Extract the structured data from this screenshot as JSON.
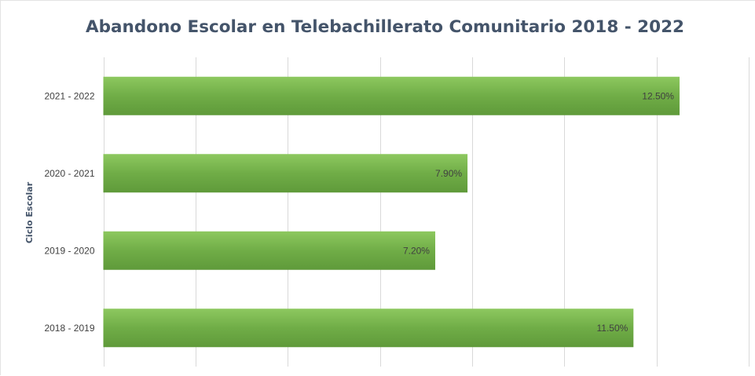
{
  "chart_data": {
    "type": "bar",
    "orientation": "horizontal",
    "title": "Abandono Escolar en Telebachillerato Comunitario 2018 - 2022",
    "ylabel": "Ciclo Escolar",
    "xlabel": "",
    "categories": [
      "2021 - 2022",
      "2020 - 2021",
      "2019 - 2020",
      "2018 - 2019"
    ],
    "values": [
      12.5,
      7.9,
      7.2,
      11.5
    ],
    "value_labels": [
      "12.50%",
      "7.90%",
      "7.20%",
      "11.50%"
    ],
    "xlim": [
      0,
      14
    ],
    "x_gridline_step": 2,
    "grid": true,
    "legend": "none",
    "bar_color": "#70ad47",
    "bar_color_light": "#8dc85f",
    "bar_color_dark": "#5f9a3a"
  }
}
